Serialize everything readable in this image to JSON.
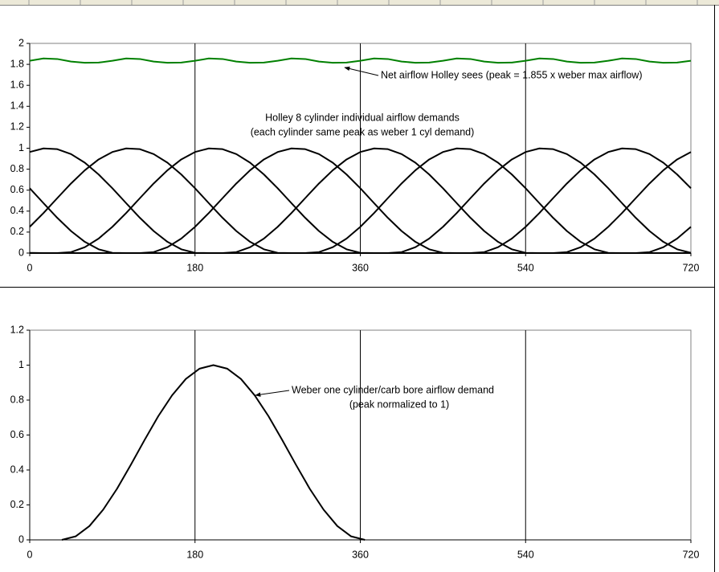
{
  "chart_data": [
    {
      "type": "line",
      "annotations": [
        "Net airflow Holley sees (peak = 1.855 x weber max airflow)",
        "Holley 8 cylinder individual airflow demands",
        "(each cylinder same peak as weber 1 cyl demand)"
      ],
      "x": [
        0,
        15,
        30,
        45,
        60,
        75,
        90,
        105,
        120,
        135,
        150,
        165,
        180,
        195,
        210,
        225,
        240,
        255,
        270,
        285,
        300,
        315,
        330,
        345,
        360,
        375,
        390,
        405,
        420,
        435,
        450,
        465,
        480,
        495,
        510,
        525,
        540,
        555,
        570,
        585,
        600,
        615,
        630,
        645,
        660,
        675,
        690,
        705,
        720
      ],
      "xlim": [
        0,
        720
      ],
      "xticks": [
        0,
        180,
        360,
        540,
        720
      ],
      "ylim": [
        0,
        2
      ],
      "yticks": [
        0,
        0.2,
        0.4,
        0.6,
        0.8,
        1,
        1.2,
        1.4,
        1.6,
        1.8,
        2
      ],
      "xgrid": true,
      "series": [
        {
          "color": "#000000",
          "values": [
            0.964,
            0.998,
            0.991,
            0.944,
            0.862,
            0.75,
            0.618,
            0.476,
            0.336,
            0.21,
            0.107,
            0.036,
            0.002,
            0,
            0,
            0,
            0,
            0,
            0,
            0,
            0,
            0,
            0,
            0,
            0,
            0,
            0,
            0,
            0,
            0,
            0,
            0,
            0,
            0,
            0,
            0,
            0,
            0,
            0,
            0.009,
            0.056,
            0.138,
            0.25,
            0.382,
            0.524,
            0.664,
            0.79,
            0.893,
            0.964
          ]
        },
        {
          "color": "#000000",
          "values": [
            0.25,
            0.382,
            0.524,
            0.664,
            0.79,
            0.893,
            0.964,
            0.998,
            0.991,
            0.944,
            0.862,
            0.75,
            0.618,
            0.476,
            0.336,
            0.21,
            0.107,
            0.036,
            0.002,
            0,
            0,
            0,
            0,
            0,
            0,
            0,
            0,
            0,
            0,
            0,
            0,
            0,
            0,
            0,
            0,
            0,
            0,
            0,
            0,
            0,
            0,
            0,
            0,
            0,
            0,
            0.009,
            0.056,
            0.138,
            0.25
          ]
        },
        {
          "color": "#000000",
          "values": [
            0,
            0,
            0,
            0.009,
            0.056,
            0.138,
            0.25,
            0.382,
            0.524,
            0.664,
            0.79,
            0.893,
            0.964,
            0.998,
            0.991,
            0.944,
            0.862,
            0.75,
            0.618,
            0.476,
            0.336,
            0.21,
            0.107,
            0.036,
            0.002,
            0,
            0,
            0,
            0,
            0,
            0,
            0,
            0,
            0,
            0,
            0,
            0,
            0,
            0,
            0,
            0,
            0,
            0,
            0,
            0,
            0,
            0,
            0,
            0
          ]
        },
        {
          "color": "#000000",
          "values": [
            0,
            0,
            0,
            0,
            0,
            0,
            0,
            0,
            0,
            0.009,
            0.056,
            0.138,
            0.25,
            0.382,
            0.524,
            0.664,
            0.79,
            0.893,
            0.964,
            0.998,
            0.991,
            0.944,
            0.862,
            0.75,
            0.618,
            0.476,
            0.336,
            0.21,
            0.107,
            0.036,
            0.002,
            0,
            0,
            0,
            0,
            0,
            0,
            0,
            0,
            0,
            0,
            0,
            0,
            0,
            0,
            0,
            0,
            0,
            0
          ]
        },
        {
          "color": "#000000",
          "values": [
            0,
            0,
            0,
            0,
            0,
            0,
            0,
            0,
            0,
            0,
            0,
            0,
            0,
            0,
            0,
            0.009,
            0.056,
            0.138,
            0.25,
            0.382,
            0.524,
            0.664,
            0.79,
            0.893,
            0.964,
            0.998,
            0.991,
            0.944,
            0.862,
            0.75,
            0.618,
            0.476,
            0.336,
            0.21,
            0.107,
            0.036,
            0.002,
            0,
            0,
            0,
            0,
            0,
            0,
            0,
            0,
            0,
            0,
            0,
            0
          ]
        },
        {
          "color": "#000000",
          "values": [
            0,
            0,
            0,
            0,
            0,
            0,
            0,
            0,
            0,
            0,
            0,
            0,
            0,
            0,
            0,
            0,
            0,
            0,
            0,
            0,
            0,
            0.009,
            0.056,
            0.138,
            0.25,
            0.382,
            0.524,
            0.664,
            0.79,
            0.893,
            0.964,
            0.998,
            0.991,
            0.944,
            0.862,
            0.75,
            0.618,
            0.476,
            0.336,
            0.21,
            0.107,
            0.036,
            0.002,
            0,
            0,
            0,
            0,
            0,
            0
          ]
        },
        {
          "color": "#000000",
          "values": [
            0.002,
            0,
            0,
            0,
            0,
            0,
            0,
            0,
            0,
            0,
            0,
            0,
            0,
            0,
            0,
            0,
            0,
            0,
            0,
            0,
            0,
            0,
            0,
            0,
            0,
            0,
            0,
            0.009,
            0.056,
            0.138,
            0.25,
            0.382,
            0.524,
            0.664,
            0.79,
            0.893,
            0.964,
            0.998,
            0.991,
            0.944,
            0.862,
            0.75,
            0.618,
            0.476,
            0.336,
            0.21,
            0.107,
            0.036,
            0.002
          ]
        },
        {
          "color": "#000000",
          "values": [
            0.618,
            0.476,
            0.336,
            0.21,
            0.107,
            0.036,
            0.002,
            0,
            0,
            0,
            0,
            0,
            0,
            0,
            0,
            0,
            0,
            0,
            0,
            0,
            0,
            0,
            0,
            0,
            0,
            0,
            0,
            0,
            0,
            0,
            0,
            0,
            0,
            0.009,
            0.056,
            0.138,
            0.25,
            0.382,
            0.524,
            0.664,
            0.79,
            0.893,
            0.964,
            0.998,
            0.991,
            0.944,
            0.862,
            0.75,
            0.618
          ]
        },
        {
          "color": "#008000",
          "values": [
            1.834,
            1.856,
            1.851,
            1.827,
            1.815,
            1.817,
            1.834,
            1.856,
            1.851,
            1.827,
            1.815,
            1.817,
            1.834,
            1.856,
            1.851,
            1.827,
            1.815,
            1.817,
            1.834,
            1.856,
            1.851,
            1.827,
            1.815,
            1.817,
            1.834,
            1.856,
            1.851,
            1.827,
            1.815,
            1.817,
            1.834,
            1.856,
            1.851,
            1.827,
            1.815,
            1.817,
            1.834,
            1.856,
            1.851,
            1.827,
            1.815,
            1.817,
            1.834,
            1.856,
            1.851,
            1.827,
            1.815,
            1.817,
            1.834
          ]
        }
      ]
    },
    {
      "type": "line",
      "annotations": [
        "Weber one cylinder/carb bore airflow demand",
        "(peak normalized to 1)"
      ],
      "x": [
        35,
        50,
        65,
        80,
        95,
        110,
        125,
        140,
        155,
        170,
        185,
        200,
        215,
        230,
        245,
        260,
        275,
        290,
        305,
        320,
        335,
        350,
        365
      ],
      "xlim": [
        0,
        720
      ],
      "xticks": [
        0,
        180,
        360,
        540,
        720
      ],
      "ylim": [
        0,
        1.2
      ],
      "yticks": [
        0,
        0.2,
        0.4,
        0.6,
        0.8,
        1,
        1.2
      ],
      "xgrid": true,
      "series": [
        {
          "color": "#000000",
          "values": [
            0,
            0.02,
            0.079,
            0.173,
            0.292,
            0.429,
            0.571,
            0.708,
            0.827,
            0.921,
            0.98,
            1,
            0.98,
            0.921,
            0.827,
            0.708,
            0.571,
            0.429,
            0.292,
            0.173,
            0.079,
            0.02,
            0
          ]
        }
      ]
    }
  ]
}
